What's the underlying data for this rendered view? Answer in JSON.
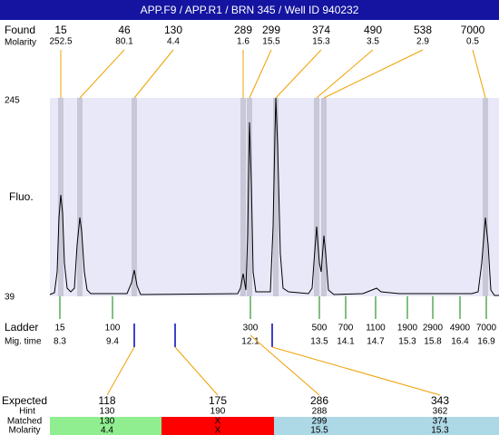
{
  "header": {
    "title": "APP.F9 / APP.R1 / BRN 345 / Well ID 940232"
  },
  "found": {
    "label": "Found",
    "sublabel": "Molarity",
    "peaks": [
      {
        "size": 15,
        "molarity": 252.5
      },
      {
        "size": 46,
        "molarity": 80.1
      },
      {
        "size": 130,
        "molarity": 4.4
      },
      {
        "size": 289,
        "molarity": 1.6
      },
      {
        "size": 299,
        "molarity": 15.5
      },
      {
        "size": 374,
        "molarity": 15.3
      },
      {
        "size": 490,
        "molarity": 3.5
      },
      {
        "size": 538,
        "molarity": 2.9
      },
      {
        "size": 7000,
        "molarity": 0.5
      }
    ]
  },
  "plot": {
    "y_max": 245,
    "y_min": 39,
    "y_label": "Fluo."
  },
  "ladder": {
    "label": "Ladder",
    "sublabel": "Mig. time",
    "items": [
      {
        "size": 15,
        "time": 8.3
      },
      {
        "size": 100,
        "time": 9.4
      },
      {
        "size": 300,
        "time": 12.1
      },
      {
        "size": 500,
        "time": 13.5
      },
      {
        "size": 700,
        "time": 14.1
      },
      {
        "size": 1100,
        "time": 14.7
      },
      {
        "size": 1900,
        "time": 15.3
      },
      {
        "size": 2900,
        "time": 15.8
      },
      {
        "size": 4900,
        "time": 16.4
      },
      {
        "size": 7000,
        "time": 16.9
      }
    ]
  },
  "expected": {
    "label": "Expected",
    "hint_label": "Hint",
    "matched_label": "Matched",
    "molarity_label": "Molarity",
    "columns": [
      {
        "expected": 118,
        "hint": 130,
        "matched": 130,
        "molarity": 4.4
      },
      {
        "expected": 175,
        "hint": 190,
        "matched": "X",
        "molarity": "X"
      },
      {
        "expected": 286,
        "hint": 288,
        "matched": 299,
        "molarity": 15.5
      },
      {
        "expected": 343,
        "hint": 362,
        "matched": 374,
        "molarity": 15.3
      }
    ]
  }
}
